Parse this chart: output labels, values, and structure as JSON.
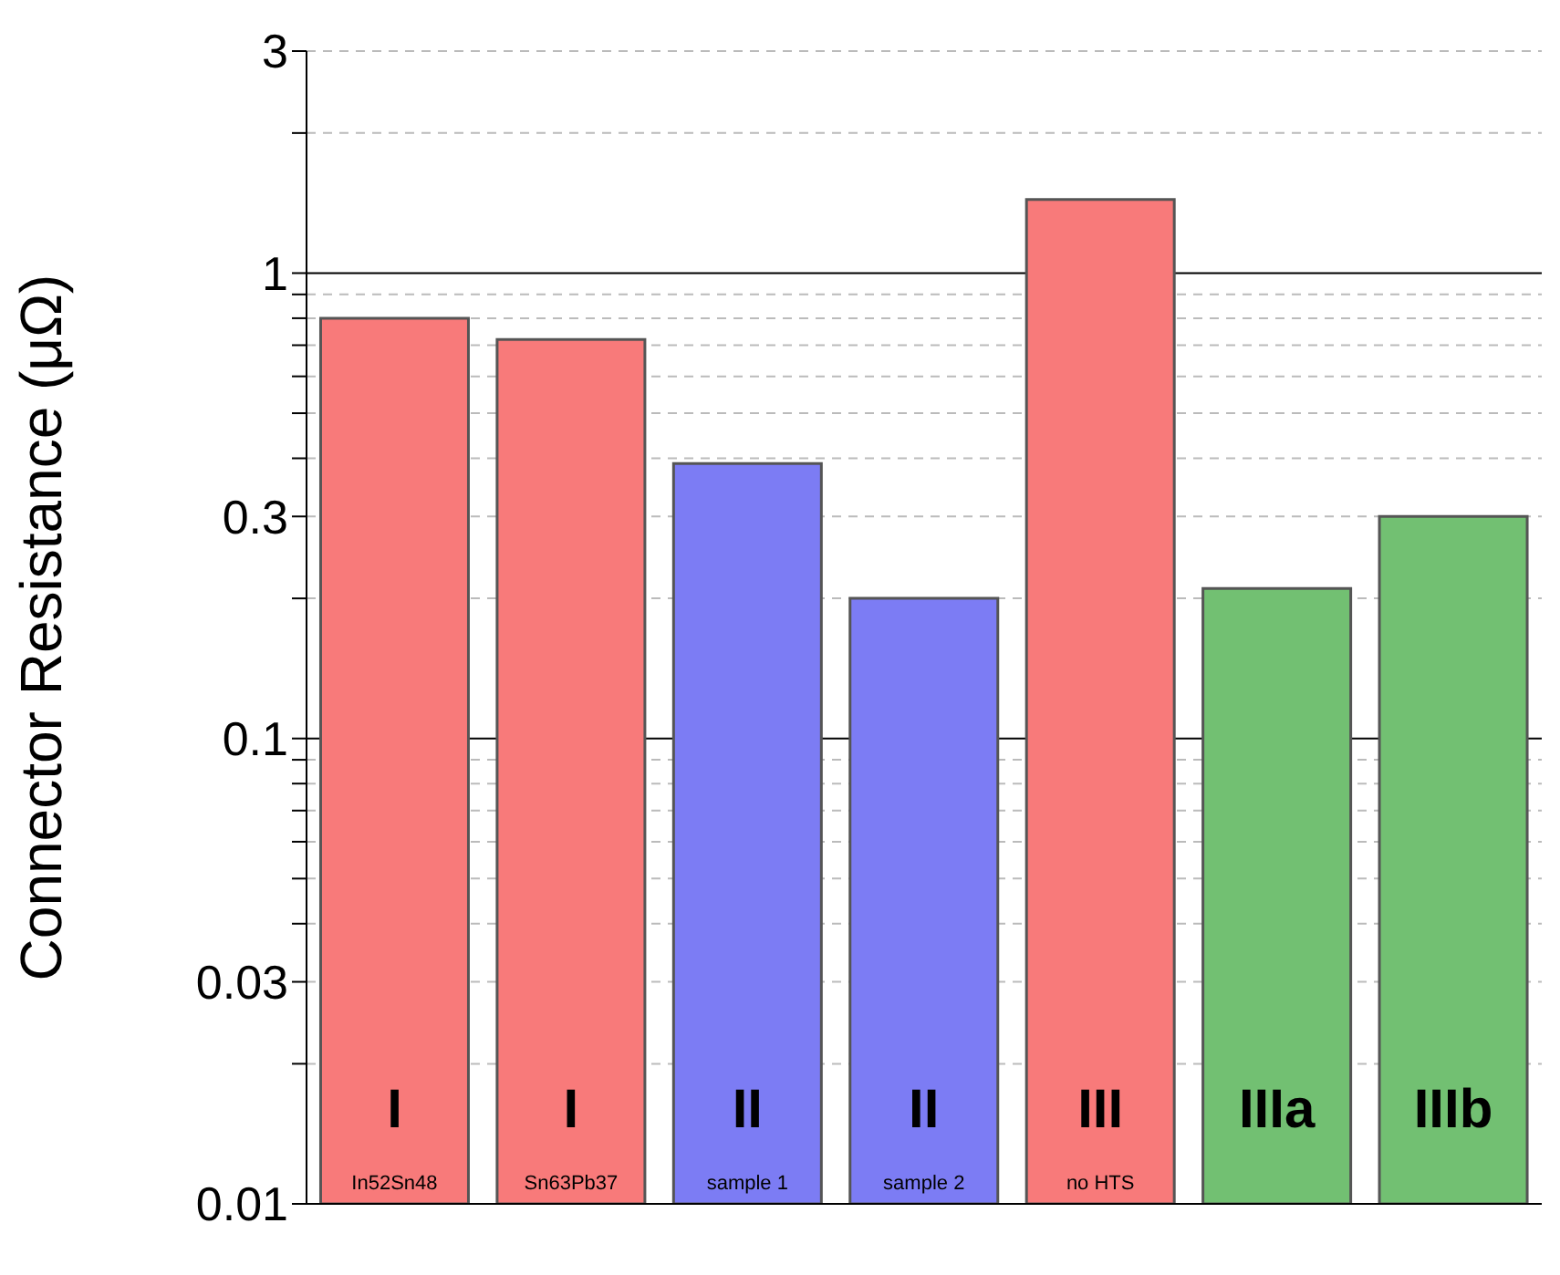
{
  "chart_data": {
    "type": "bar",
    "ylabel": "Connector Resistance (μΩ)",
    "categories": [
      "I",
      "I",
      "II",
      "II",
      "III",
      "IIIa",
      "IIIb"
    ],
    "values": [
      0.8,
      0.72,
      0.39,
      0.2,
      1.44,
      0.21,
      0.3
    ],
    "colors": [
      "#f87a7a",
      "#f87a7a",
      "#7c7cf4",
      "#7c7cf4",
      "#f87a7a",
      "#72c072",
      "#72c072"
    ],
    "annotations": [
      "In52Sn48",
      "Sn63Pb37",
      "sample 1",
      "sample 2",
      "no HTS",
      null,
      null
    ],
    "log": "y",
    "ylim": [
      0.01,
      3
    ],
    "yticks": [
      0.01,
      {
        "value": 0.02,
        "label": null
      },
      0.03,
      {
        "value": 0.04,
        "label": null
      },
      {
        "value": 0.05,
        "label": null
      },
      {
        "value": 0.06,
        "label": null
      },
      {
        "value": 0.07,
        "label": null
      },
      {
        "value": 0.08,
        "label": null
      },
      {
        "value": 0.09,
        "label": null
      },
      0.1,
      {
        "value": 0.2,
        "label": null
      },
      0.3,
      {
        "value": 0.4,
        "label": null
      },
      {
        "value": 0.5,
        "label": null
      },
      {
        "value": 0.6,
        "label": null
      },
      {
        "value": 0.7,
        "label": null
      },
      {
        "value": 0.8,
        "label": null
      },
      {
        "value": 0.9,
        "label": null
      },
      1,
      {
        "value": 2,
        "label": null
      },
      3
    ],
    "grid": "y"
  }
}
